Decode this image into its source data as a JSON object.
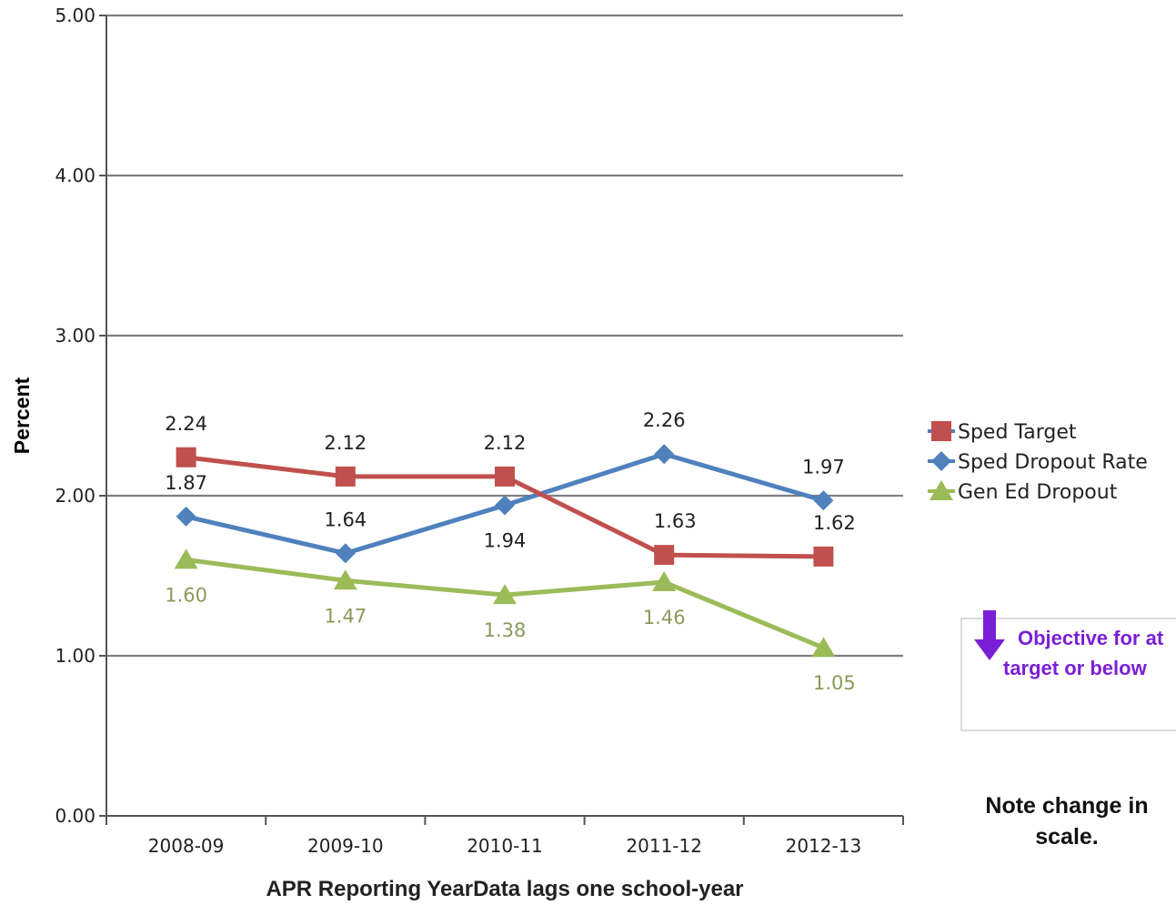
{
  "chart_data": {
    "type": "line",
    "categories": [
      "2008-09",
      "2009-10",
      "2010-11",
      "2011-12",
      "2012-13"
    ],
    "series": [
      {
        "name": "Sped Target",
        "values": [
          2.24,
          2.12,
          2.12,
          1.63,
          1.62
        ],
        "labels": [
          "2.24",
          "2.12",
          "2.12",
          "1.63",
          "1.62"
        ],
        "color": "#c0504d",
        "marker": "square"
      },
      {
        "name": "Sped Dropout Rate",
        "values": [
          1.87,
          1.64,
          1.94,
          2.26,
          1.97
        ],
        "labels": [
          "1.87",
          "1.64",
          "1.94",
          "2.26",
          "1.97"
        ],
        "color": "#4f81bd",
        "marker": "diamond"
      },
      {
        "name": "Gen Ed Dropout",
        "values": [
          1.6,
          1.47,
          1.38,
          1.46,
          1.05
        ],
        "labels": [
          "1.60",
          "1.47",
          "1.38",
          "1.46",
          "1.05"
        ],
        "color": "#9bbb59",
        "marker": "triangle",
        "label_color": "#8a9a5b"
      }
    ],
    "ylim": [
      0,
      5
    ],
    "yticks": [
      "0.00",
      "1.00",
      "2.00",
      "3.00",
      "4.00",
      "5.00"
    ],
    "ylabel": "Percent",
    "xlabel": "APR Reporting YearData lags one school-year",
    "grid": true,
    "legend_position": "right"
  },
  "annotations": {
    "objective_line1": "Objective for at",
    "objective_line2": "target or below",
    "note_line1": "Note change in",
    "note_line2": "scale."
  }
}
